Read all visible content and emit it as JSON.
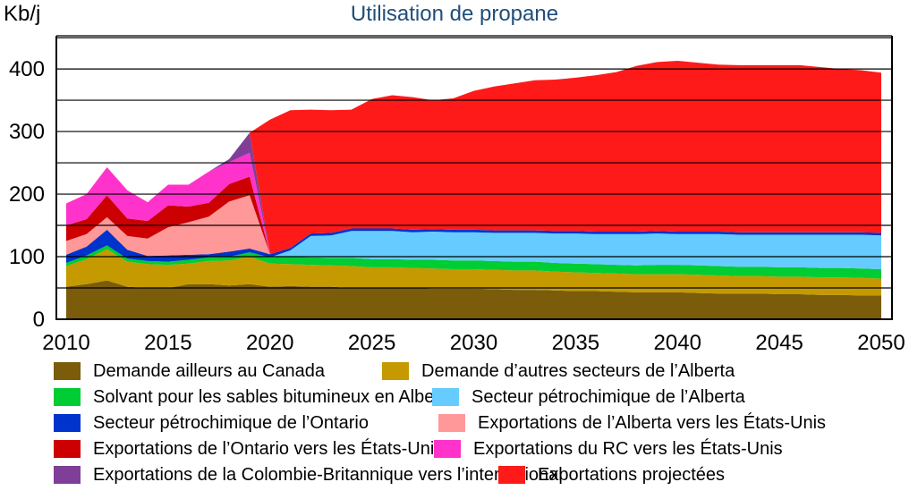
{
  "chart_data": {
    "type": "area",
    "title": "Utilisation de propane",
    "ylabel": "Kb/j",
    "xlabel": "",
    "xlim": [
      2010,
      2050
    ],
    "ylim": [
      0,
      400
    ],
    "x_ticks": [
      "2010",
      "2015",
      "2020",
      "2025",
      "2030",
      "2035",
      "2040",
      "2045",
      "2050"
    ],
    "y_ticks": [
      "0",
      "100",
      "200",
      "300",
      "400"
    ],
    "grid": true,
    "legend_position": "bottom",
    "x": [
      2010,
      2011,
      2012,
      2013,
      2014,
      2015,
      2016,
      2017,
      2018,
      2019,
      2020,
      2021,
      2022,
      2023,
      2024,
      2025,
      2026,
      2027,
      2028,
      2029,
      2030,
      2031,
      2032,
      2033,
      2034,
      2035,
      2036,
      2037,
      2038,
      2039,
      2040,
      2041,
      2042,
      2043,
      2044,
      2045,
      2046,
      2047,
      2048,
      2049,
      2050
    ],
    "series": [
      {
        "name": "Demande ailleurs au Canada",
        "color": "#7a5c0a",
        "values": [
          52,
          56,
          62,
          52,
          50,
          50,
          56,
          56,
          54,
          56,
          52,
          53,
          52,
          52,
          50,
          50,
          50,
          50,
          49,
          49,
          49,
          48,
          47,
          47,
          46,
          45,
          45,
          44,
          43,
          43,
          43,
          42,
          41,
          41,
          41,
          40,
          40,
          39,
          39,
          38,
          38
        ]
      },
      {
        "name": "Demande d’autres secteurs de l’Alberta",
        "color": "#c49a00",
        "values": [
          33,
          40,
          50,
          40,
          38,
          37,
          33,
          37,
          40,
          44,
          37,
          35,
          35,
          34,
          35,
          33,
          33,
          32,
          32,
          31,
          31,
          31,
          31,
          31,
          30,
          30,
          29,
          29,
          29,
          29,
          29,
          29,
          29,
          28,
          28,
          28,
          28,
          28,
          28,
          28,
          27
        ]
      },
      {
        "name": "Solvant pour les sables bitumineux en Alberta",
        "color": "#00cc33",
        "values": [
          5,
          6,
          6,
          5,
          5,
          5,
          6,
          6,
          6,
          7,
          10,
          12,
          12,
          12,
          13,
          13,
          13,
          13,
          14,
          14,
          14,
          14,
          14,
          14,
          14,
          14,
          14,
          14,
          14,
          15,
          15,
          15,
          15,
          15,
          15,
          15,
          15,
          15,
          15,
          15,
          15
        ]
      },
      {
        "name": "Secteur pétrochimique de l’Alberta",
        "color": "#66ccff",
        "values": [
          0,
          0,
          0,
          0,
          0,
          0,
          0,
          0,
          0,
          0,
          0,
          10,
          34,
          36,
          43,
          45,
          45,
          44,
          45,
          45,
          45,
          45,
          46,
          46,
          47,
          48,
          48,
          49,
          50,
          50,
          49,
          50,
          51,
          51,
          51,
          52,
          52,
          53,
          53,
          54,
          54
        ]
      },
      {
        "name": "Secteur pétrochimique de l’Ontario",
        "color": "#0033cc",
        "values": [
          13,
          14,
          25,
          14,
          8,
          10,
          8,
          5,
          8,
          6,
          5,
          4,
          4,
          4,
          4,
          4,
          4,
          4,
          4,
          4,
          4,
          4,
          4,
          4,
          4,
          4,
          4,
          4,
          4,
          4,
          4,
          4,
          4,
          4,
          4,
          4,
          4,
          4,
          4,
          4,
          4
        ]
      },
      {
        "name": "Exportations de l’Alberta vers les États-Unis",
        "color": "#ff9999",
        "values": [
          22,
          20,
          20,
          22,
          28,
          45,
          52,
          60,
          80,
          85,
          0,
          0,
          0,
          0,
          0,
          0,
          0,
          0,
          0,
          0,
          0,
          0,
          0,
          0,
          0,
          0,
          0,
          0,
          0,
          0,
          0,
          0,
          0,
          0,
          0,
          0,
          0,
          0,
          0,
          0,
          0
        ]
      },
      {
        "name": "Exportations de l’Ontario vers les États-Unis",
        "color": "#cc0000",
        "values": [
          25,
          24,
          35,
          28,
          28,
          35,
          25,
          22,
          28,
          30,
          0,
          0,
          0,
          0,
          0,
          0,
          0,
          0,
          0,
          0,
          0,
          0,
          0,
          0,
          0,
          0,
          0,
          0,
          0,
          0,
          0,
          0,
          0,
          0,
          0,
          0,
          0,
          0,
          0,
          0,
          0
        ]
      },
      {
        "name": "Exportations du RC vers les États-Unis",
        "color": "#ff33cc",
        "values": [
          35,
          40,
          45,
          45,
          30,
          33,
          35,
          50,
          35,
          38,
          0,
          0,
          0,
          0,
          0,
          0,
          0,
          0,
          0,
          0,
          0,
          0,
          0,
          0,
          0,
          0,
          0,
          0,
          0,
          0,
          0,
          0,
          0,
          0,
          0,
          0,
          0,
          0,
          0,
          0,
          0
        ]
      },
      {
        "name": "Exportations de la Colombie-Britannique vers l’international",
        "color": "#7f3f98",
        "values": [
          0,
          0,
          0,
          0,
          0,
          0,
          0,
          0,
          5,
          32,
          0,
          0,
          0,
          0,
          0,
          0,
          0,
          0,
          0,
          0,
          0,
          0,
          0,
          0,
          0,
          0,
          0,
          0,
          0,
          0,
          0,
          0,
          0,
          0,
          0,
          0,
          0,
          0,
          0,
          0,
          0
        ]
      },
      {
        "name": "Exportations projectées",
        "color": "#ff1a1a",
        "values": [
          0,
          0,
          0,
          0,
          0,
          0,
          0,
          0,
          0,
          0,
          215,
          220,
          198,
          196,
          190,
          207,
          213,
          212,
          206,
          210,
          222,
          230,
          235,
          240,
          242,
          245,
          250,
          255,
          265,
          270,
          273,
          270,
          267,
          267,
          267,
          267,
          267,
          264,
          261,
          259,
          256
        ]
      }
    ]
  }
}
